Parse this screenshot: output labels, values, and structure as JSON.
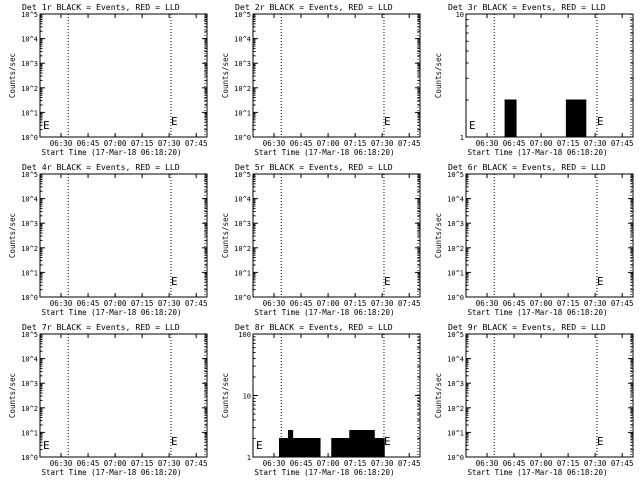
{
  "window": {
    "width": 640,
    "height": 480
  },
  "chart_data": [
    {
      "type": "line",
      "title": "Det 1r BLACK = Events, RED = LLD",
      "xlabel": "Start Time (17-Mar-18 06:18:20)",
      "ylabel": "Counts/sec",
      "xticks": [
        "06:30",
        "06:45",
        "07:00",
        "07:15",
        "07:30",
        "07:45"
      ],
      "yscale": "log",
      "ylim": [
        1,
        100000
      ],
      "yticks": [
        "10^0",
        "10^1",
        "10^2",
        "10^3",
        "10^4",
        "10^5"
      ],
      "series": [],
      "annotations": [
        {
          "text": "E",
          "near": "left"
        },
        {
          "text": "E",
          "near": "right"
        }
      ]
    },
    {
      "type": "line",
      "title": "Det 2r BLACK = Events, RED = LLD",
      "xlabel": "Start Time (17-Mar-18 06:18:20)",
      "ylabel": "Counts/sec",
      "xticks": [
        "06:30",
        "06:45",
        "07:00",
        "07:15",
        "07:30",
        "07:45"
      ],
      "yscale": "log",
      "ylim": [
        1,
        100000
      ],
      "yticks": [
        "10^0",
        "10^1",
        "10^2",
        "10^3",
        "10^4",
        "10^5"
      ],
      "series": [],
      "annotations": [
        {
          "text": "E",
          "near": "right"
        }
      ]
    },
    {
      "type": "line",
      "title": "Det 3r BLACK = Events, RED = LLD",
      "xlabel": "Start Time (17-Mar-18 06:18:20)",
      "ylabel": "Counts/sec",
      "xticks": [
        "06:30",
        "06:45",
        "07:00",
        "07:15",
        "07:30",
        "07:45"
      ],
      "yscale": "log",
      "ylim": [
        1,
        10
      ],
      "yticks": [
        "1",
        "10"
      ],
      "series": [
        {
          "name": "Events",
          "color": "#000000",
          "bursts": [
            {
              "from": "06:40",
              "to": "06:46",
              "high": 2
            },
            {
              "from": "07:14",
              "to": "07:25",
              "high": 2
            }
          ]
        }
      ],
      "annotations": [
        {
          "text": "E",
          "near": "left"
        },
        {
          "text": "E",
          "near": "right"
        }
      ]
    },
    {
      "type": "line",
      "title": "Det 4r BLACK = Events, RED = LLD",
      "xlabel": "Start Time (17-Mar-18 06:18:20)",
      "ylabel": "Counts/sec",
      "xticks": [
        "06:30",
        "06:45",
        "07:00",
        "07:15",
        "07:30",
        "07:45"
      ],
      "yscale": "log",
      "ylim": [
        1,
        100000
      ],
      "yticks": [
        "10^0",
        "10^1",
        "10^2",
        "10^3",
        "10^4",
        "10^5"
      ],
      "series": [],
      "annotations": [
        {
          "text": "E",
          "near": "right"
        }
      ]
    },
    {
      "type": "line",
      "title": "Det 5r BLACK = Events, RED = LLD",
      "xlabel": "Start Time (17-Mar-18 06:18:20)",
      "ylabel": "Counts/sec",
      "xticks": [
        "06:30",
        "06:45",
        "07:00",
        "07:15",
        "07:30",
        "07:45"
      ],
      "yscale": "log",
      "ylim": [
        1,
        100000
      ],
      "yticks": [
        "10^0",
        "10^1",
        "10^2",
        "10^3",
        "10^4",
        "10^5"
      ],
      "series": [],
      "annotations": [
        {
          "text": "E",
          "near": "right"
        }
      ]
    },
    {
      "type": "line",
      "title": "Det 6r BLACK = Events, RED = LLD",
      "xlabel": "Start Time (17-Mar-18 06:18:20)",
      "ylabel": "Counts/sec",
      "xticks": [
        "06:30",
        "06:45",
        "07:00",
        "07:15",
        "07:30",
        "07:45"
      ],
      "yscale": "log",
      "ylim": [
        1,
        100000
      ],
      "yticks": [
        "10^0",
        "10^1",
        "10^2",
        "10^3",
        "10^4",
        "10^5"
      ],
      "series": [],
      "annotations": [
        {
          "text": "E",
          "near": "right"
        }
      ]
    },
    {
      "type": "line",
      "title": "Det 7r BLACK = Events, RED = LLD",
      "xlabel": "Start Time (17-Mar-18 06:18:20)",
      "ylabel": "Counts/sec",
      "xticks": [
        "06:30",
        "06:45",
        "07:00",
        "07:15",
        "07:30",
        "07:45"
      ],
      "yscale": "log",
      "ylim": [
        1,
        100000
      ],
      "yticks": [
        "10^0",
        "10^1",
        "10^2",
        "10^3",
        "10^4",
        "10^5"
      ],
      "series": [],
      "annotations": [
        {
          "text": "E",
          "near": "left"
        },
        {
          "text": "E",
          "near": "right"
        }
      ]
    },
    {
      "type": "line",
      "title": "Det 8r BLACK = Events, RED = LLD",
      "xlabel": "Start Time (17-Mar-18 06:18:20)",
      "ylabel": "Counts/sec",
      "xticks": [
        "06:30",
        "06:45",
        "07:00",
        "07:15",
        "07:30",
        "07:45"
      ],
      "yscale": "log",
      "ylim": [
        1,
        100
      ],
      "yticks": [
        "1",
        "10",
        "100"
      ],
      "series": [
        {
          "name": "Events",
          "color": "#000000",
          "bursts": [
            {
              "from": "06:33",
              "to": "06:38",
              "high": 2
            },
            {
              "from": "06:38",
              "to": "06:40",
              "high": 2.7
            },
            {
              "from": "06:40",
              "to": "06:56",
              "high": 2
            },
            {
              "from": "07:02",
              "to": "07:12",
              "high": 2
            },
            {
              "from": "07:12",
              "to": "07:26",
              "high": 2.7
            },
            {
              "from": "07:26",
              "to": "07:31",
              "high": 2
            }
          ]
        }
      ],
      "annotations": [
        {
          "text": "E",
          "near": "left"
        },
        {
          "text": "E",
          "near": "right"
        }
      ]
    },
    {
      "type": "line",
      "title": "Det 9r BLACK = Events, RED = LLD",
      "xlabel": "Start Time (17-Mar-18 06:18:20)",
      "ylabel": "Counts/sec",
      "xticks": [
        "06:30",
        "06:45",
        "07:00",
        "07:15",
        "07:30",
        "07:45"
      ],
      "yscale": "log",
      "ylim": [
        1,
        100000
      ],
      "yticks": [
        "10^0",
        "10^1",
        "10^2",
        "10^3",
        "10^4",
        "10^5"
      ],
      "series": [],
      "annotations": [
        {
          "text": "E",
          "near": "right"
        }
      ]
    }
  ]
}
